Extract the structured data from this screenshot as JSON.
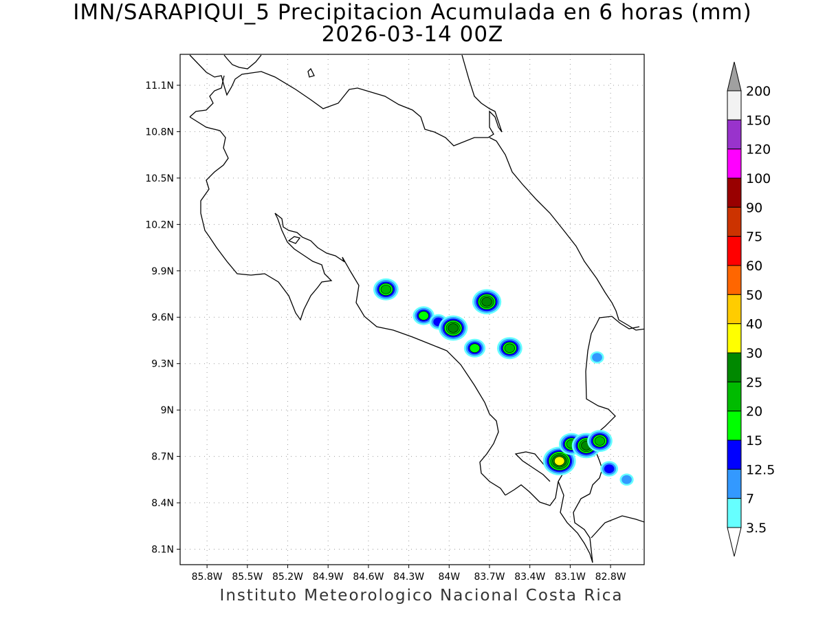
{
  "title": {
    "line1": "IMN/SARAPIQUI_5 Precipitacion Acumulada en 6 horas (mm)",
    "line2": "2026-03-14 00Z"
  },
  "credit": "Instituto Meteorologico Nacional Costa Rica",
  "map": {
    "lon_range": [
      -86.0,
      -82.55
    ],
    "lat_range": [
      8.0,
      11.3
    ],
    "lon_ticks": [
      {
        "value": -85.8,
        "label": "85.8W"
      },
      {
        "value": -85.5,
        "label": "85.5W"
      },
      {
        "value": -85.2,
        "label": "85.2W"
      },
      {
        "value": -84.9,
        "label": "84.9W"
      },
      {
        "value": -84.6,
        "label": "84.6W"
      },
      {
        "value": -84.3,
        "label": "84.3W"
      },
      {
        "value": -84.0,
        "label": "84W"
      },
      {
        "value": -83.7,
        "label": "83.7W"
      },
      {
        "value": -83.4,
        "label": "83.4W"
      },
      {
        "value": -83.1,
        "label": "83.1W"
      },
      {
        "value": -82.8,
        "label": "82.8W"
      }
    ],
    "lat_ticks": [
      {
        "value": 11.1,
        "label": "11.1N"
      },
      {
        "value": 10.8,
        "label": "10.8N"
      },
      {
        "value": 10.5,
        "label": "10.5N"
      },
      {
        "value": 10.2,
        "label": "10.2N"
      },
      {
        "value": 9.9,
        "label": "9.9N"
      },
      {
        "value": 9.6,
        "label": "9.6N"
      },
      {
        "value": 9.3,
        "label": "9.3N"
      },
      {
        "value": 9.0,
        "label": "9N"
      },
      {
        "value": 8.7,
        "label": "8.7N"
      },
      {
        "value": 8.4,
        "label": "8.4N"
      },
      {
        "value": 8.1,
        "label": "8.1N"
      }
    ],
    "grid": "dotted"
  },
  "colorbar": {
    "levels": [
      {
        "label": "200",
        "color": "#a0a0a0"
      },
      {
        "label": "150",
        "color": "#f2f2f2"
      },
      {
        "label": "120",
        "color": "#9933cc"
      },
      {
        "label": "100",
        "color": "#ff00ff"
      },
      {
        "label": "90",
        "color": "#990000"
      },
      {
        "label": "75",
        "color": "#cc3300"
      },
      {
        "label": "60",
        "color": "#ff0000"
      },
      {
        "label": "50",
        "color": "#ff6600"
      },
      {
        "label": "40",
        "color": "#ffcc00"
      },
      {
        "label": "30",
        "color": "#ffff00"
      },
      {
        "label": "25",
        "color": "#008800"
      },
      {
        "label": "20",
        "color": "#00bb00"
      },
      {
        "label": "15",
        "color": "#00ff00"
      },
      {
        "label": "12.5",
        "color": "#0000ff"
      },
      {
        "label": "7",
        "color": "#3399ff"
      },
      {
        "label": "3.5",
        "color": "#66ffff"
      }
    ],
    "bottom_arrow_color": "#ffffff"
  },
  "precip_cells": [
    {
      "lon": -84.47,
      "lat": 9.78,
      "level": "20"
    },
    {
      "lon": -84.19,
      "lat": 9.61,
      "level": "15"
    },
    {
      "lon": -84.08,
      "lat": 9.57,
      "level": "12.5"
    },
    {
      "lon": -83.97,
      "lat": 9.53,
      "level": "25"
    },
    {
      "lon": -83.72,
      "lat": 9.7,
      "level": "25"
    },
    {
      "lon": -83.81,
      "lat": 9.4,
      "level": "15"
    },
    {
      "lon": -83.55,
      "lat": 9.4,
      "level": "20"
    },
    {
      "lon": -82.9,
      "lat": 9.34,
      "level": "7"
    },
    {
      "lon": -83.18,
      "lat": 8.67,
      "level": "30"
    },
    {
      "lon": -83.09,
      "lat": 8.78,
      "level": "20"
    },
    {
      "lon": -82.98,
      "lat": 8.77,
      "level": "25"
    },
    {
      "lon": -82.88,
      "lat": 8.8,
      "level": "20"
    },
    {
      "lon": -82.81,
      "lat": 8.62,
      "level": "12.5"
    },
    {
      "lon": -82.68,
      "lat": 8.55,
      "level": "7"
    }
  ]
}
